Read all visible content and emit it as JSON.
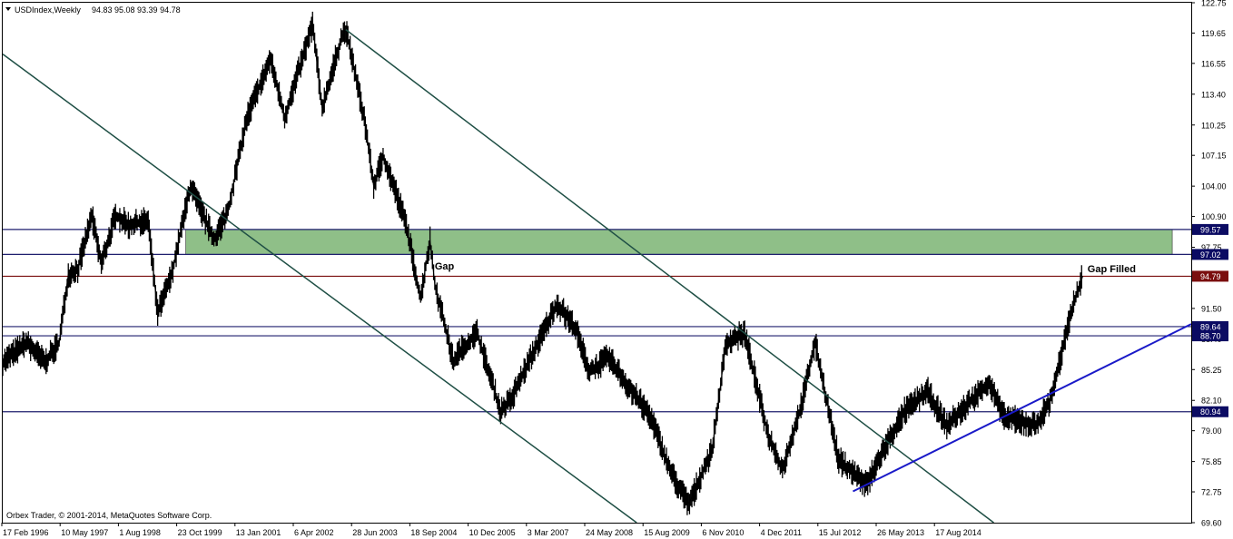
{
  "window": {
    "symbol_caption": "USDIndex,Weekly",
    "ohlc_caption": "94.83 95.08 93.39 94.78",
    "copyright": "Orbex Trader, © 2001-2014, MetaQuotes Software Corp."
  },
  "chart_data": {
    "type": "line",
    "series_kind": "weekly-bars",
    "x_ticks": [
      "17 Feb 1996",
      "10 May 1997",
      "1 Aug 1998",
      "23 Oct 1999",
      "13 Jan 2001",
      "6 Apr 2002",
      "28 Jun 2003",
      "18 Sep 2004",
      "10 Dec 2005",
      "3 Mar 2007",
      "24 May 2008",
      "15 Aug 2009",
      "6 Nov 2010",
      "4 Dec 2011",
      "15 Jul 2012",
      "26 May 2013",
      "17 Aug 2014"
    ],
    "y_ticks": [
      122.75,
      119.65,
      116.55,
      113.4,
      110.25,
      107.15,
      104.0,
      100.9,
      97.75,
      94.65,
      91.5,
      88.4,
      85.25,
      82.1,
      79.0,
      75.85,
      72.75,
      69.6
    ],
    "ylim": [
      69.6,
      122.75
    ],
    "x_range": [
      "1996-01-01",
      "2017-02-01"
    ],
    "price_path": [
      [
        "1996-01-01",
        86.0
      ],
      [
        "1996-06-01",
        88.0
      ],
      [
        "1996-10-01",
        86.0
      ],
      [
        "1997-01-01",
        88.0
      ],
      [
        "1997-03-01",
        95.0
      ],
      [
        "1997-05-01",
        95.5
      ],
      [
        "1997-08-01",
        101.0
      ],
      [
        "1997-10-01",
        96.0
      ],
      [
        "1998-01-01",
        101.0
      ],
      [
        "1998-04-01",
        100.0
      ],
      [
        "1998-08-01",
        100.5
      ],
      [
        "1998-10-01",
        91.0
      ],
      [
        "1999-01-01",
        95.0
      ],
      [
        "1999-05-01",
        104.0
      ],
      [
        "1999-10-01",
        98.5
      ],
      [
        "2000-01-01",
        101.5
      ],
      [
        "2000-05-01",
        111.0
      ],
      [
        "2000-10-01",
        117.0
      ],
      [
        "2001-01-01",
        111.0
      ],
      [
        "2001-07-01",
        120.5
      ],
      [
        "2001-09-01",
        112.0
      ],
      [
        "2002-01-01",
        119.0
      ],
      [
        "2002-02-01",
        120.0
      ],
      [
        "2002-06-01",
        111.0
      ],
      [
        "2002-08-01",
        104.0
      ],
      [
        "2002-10-01",
        107.0
      ],
      [
        "2003-01-01",
        103.0
      ],
      [
        "2003-03-01",
        100.0
      ],
      [
        "2003-05-01",
        95.0
      ],
      [
        "2003-06-01",
        92.5
      ],
      [
        "2003-08-01",
        98.5
      ],
      [
        "2003-09-01",
        94.0
      ],
      [
        "2004-01-01",
        86.0
      ],
      [
        "2004-02-01",
        87.0
      ],
      [
        "2004-06-01",
        89.0
      ],
      [
        "2004-11-01",
        81.0
      ],
      [
        "2005-01-01",
        82.0
      ],
      [
        "2005-07-01",
        88.0
      ],
      [
        "2005-11-01",
        92.0
      ],
      [
        "2006-03-01",
        89.5
      ],
      [
        "2006-06-01",
        85.0
      ],
      [
        "2006-10-01",
        86.5
      ],
      [
        "2007-03-01",
        83.0
      ],
      [
        "2007-07-01",
        80.5
      ],
      [
        "2007-11-01",
        75.0
      ],
      [
        "2008-03-01",
        71.5
      ],
      [
        "2008-04-01",
        72.5
      ],
      [
        "2008-08-01",
        77.0
      ],
      [
        "2008-11-01",
        88.0
      ],
      [
        "2009-03-01",
        89.0
      ],
      [
        "2009-08-01",
        78.5
      ],
      [
        "2009-11-01",
        75.0
      ],
      [
        "2010-03-01",
        81.5
      ],
      [
        "2010-06-01",
        88.0
      ],
      [
        "2010-11-01",
        76.0
      ],
      [
        "2011-05-01",
        73.5
      ],
      [
        "2011-09-01",
        77.5
      ],
      [
        "2012-01-01",
        81.0
      ],
      [
        "2012-06-01",
        83.0
      ],
      [
        "2012-10-01",
        79.5
      ],
      [
        "2013-02-01",
        81.5
      ],
      [
        "2013-07-01",
        84.0
      ],
      [
        "2013-10-01",
        80.5
      ],
      [
        "2014-05-01",
        79.5
      ],
      [
        "2014-08-01",
        82.0
      ],
      [
        "2014-11-01",
        88.0
      ],
      [
        "2015-01-01",
        92.0
      ],
      [
        "2015-03-01",
        94.8
      ]
    ],
    "trend_lines": [
      {
        "color": "#1f4f45",
        "from": [
          "1996-01-01",
          117.5
        ],
        "to": [
          "2007-04-01",
          69.6
        ]
      },
      {
        "color": "#1f4f45",
        "from": [
          "2002-02-01",
          120.0
        ],
        "to": [
          "2013-08-01",
          69.6
        ]
      },
      {
        "color": "#1a1ac8",
        "from": [
          "2011-02-01",
          72.8
        ],
        "to": [
          "2017-02-01",
          89.9
        ]
      }
    ],
    "horizontal_levels": [
      {
        "value": 99.57,
        "color": "#1f1f6e",
        "tag": "99.57",
        "tag_color": "#0b0b63"
      },
      {
        "value": 97.02,
        "color": "#1f1f6e",
        "tag": "97.02",
        "tag_color": "#0b0b63"
      },
      {
        "value": 94.79,
        "color": "#7a0e0e",
        "tag": "94.79",
        "tag_color": "#7a0e0e"
      },
      {
        "value": 89.64,
        "color": "#1f1f6e",
        "tag": "89.64",
        "tag_color": "#0b0b63"
      },
      {
        "value": 88.7,
        "color": "#1f1f6e",
        "tag": "88.70",
        "tag_color": "#0b0b63"
      },
      {
        "value": 80.94,
        "color": "#1f1f6e",
        "tag": "80.94",
        "tag_color": "#0b0b63"
      }
    ],
    "zone": {
      "from_date": "1999-04-01",
      "to_date": "2016-10-01",
      "y_low": 97.02,
      "y_high": 99.57,
      "color": "#8fbf88"
    },
    "annotations": [
      {
        "text": "Gap",
        "date": "2003-09-01",
        "value": 95.5
      },
      {
        "text": "Gap Filled",
        "date": "2015-04-01",
        "value": 95.2
      }
    ]
  }
}
